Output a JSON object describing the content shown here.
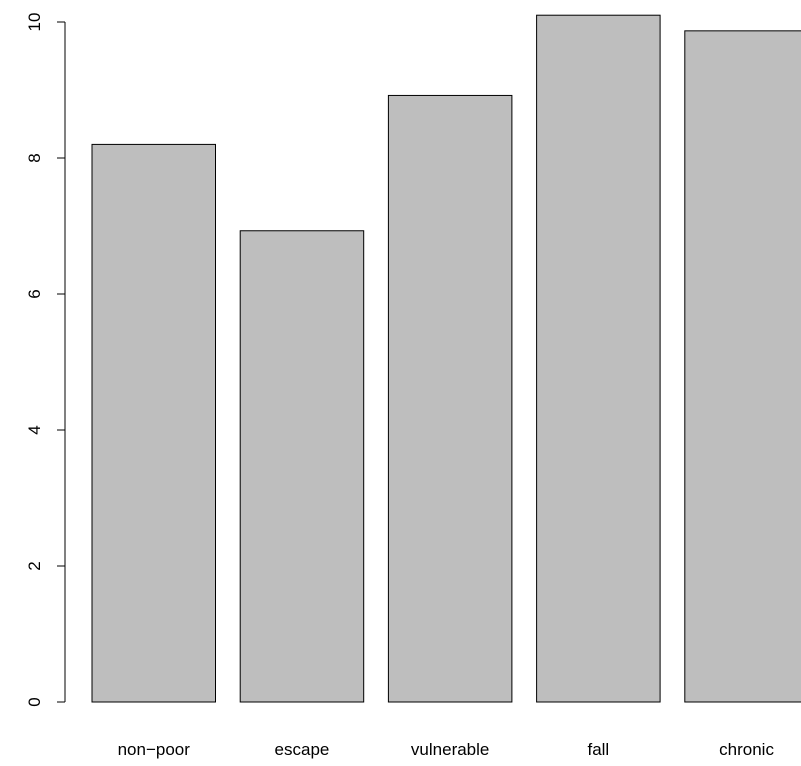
{
  "chart_data": {
    "type": "bar",
    "categories": [
      "non−poor",
      "escape",
      "vulnerable",
      "fall",
      "chronic"
    ],
    "values": [
      8.2,
      6.93,
      8.92,
      10.1,
      9.87
    ],
    "title": "",
    "xlabel": "",
    "ylabel": "",
    "ylim": [
      0,
      10
    ],
    "yticks": [
      "0",
      "2",
      "4",
      "6",
      "8",
      "10"
    ],
    "grid": false,
    "legend": "none",
    "bar_fill": "#bebebe",
    "bar_stroke": "#000000"
  }
}
